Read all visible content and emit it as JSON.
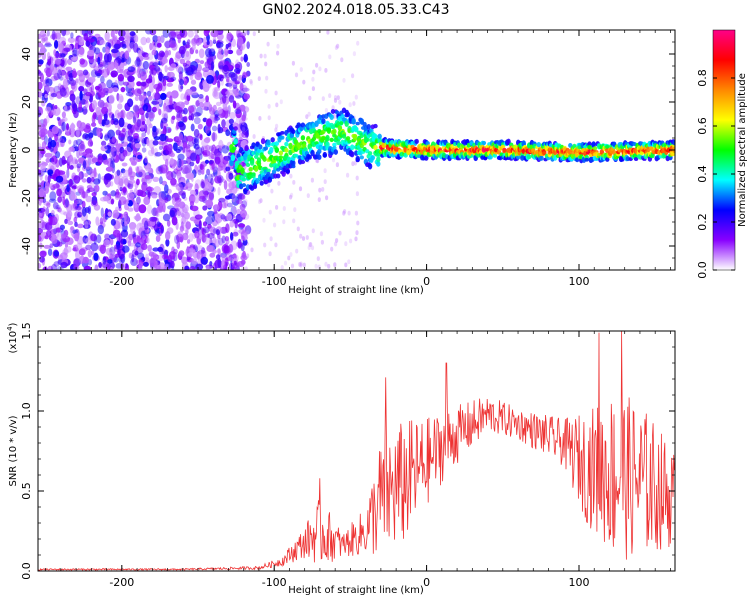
{
  "figure": {
    "title": "GN02.2024.018.05.33.C43"
  },
  "chart_data": [
    {
      "type": "heatmap",
      "name": "spectrogram",
      "xlabel": "Height of straight line (km)",
      "ylabel": "Frequency (Hz)",
      "xlim": [
        -255,
        163
      ],
      "ylim": [
        -50,
        50
      ],
      "xticks": [
        -200,
        -100,
        0,
        100
      ],
      "yticks": [
        40,
        20,
        0,
        -20,
        -40
      ],
      "colorbar": {
        "label": "Normalized spectral amplitude",
        "range": [
          0,
          1
        ],
        "ticks": [
          "0.0",
          "0.2",
          "0.4",
          "0.6",
          "0.8"
        ],
        "tick_values": [
          0.0,
          0.2,
          0.4,
          0.6,
          0.8
        ],
        "colors": [
          "#ffffff",
          "#8800ff",
          "#0000ff",
          "#00ffff",
          "#00ff00",
          "#ffff00",
          "#ff8800",
          "#ff0000",
          "#ff0088"
        ]
      },
      "features": {
        "noise_region_x": [
          -255,
          -125
        ],
        "ridge_center_hz": 0,
        "ridge": [
          {
            "x": -125,
            "freq": -10
          },
          {
            "x": -100,
            "freq": -3
          },
          {
            "x": -75,
            "freq": 5
          },
          {
            "x": -55,
            "freq": 8
          },
          {
            "x": -35,
            "freq": 1
          },
          {
            "x": 0,
            "freq": 0
          },
          {
            "x": 50,
            "freq": 0
          },
          {
            "x": 100,
            "freq": -1
          },
          {
            "x": 163,
            "freq": 0
          }
        ]
      }
    },
    {
      "type": "line",
      "name": "snr",
      "xlabel": "Height of straight line (km)",
      "ylabel": "SNR (10 * v/v)",
      "y_multiplier": "(x10",
      "y_multiplier_exp": "4",
      "y_multiplier_close": ")",
      "xlim": [
        -255,
        163
      ],
      "ylim": [
        0.0,
        1.5
      ],
      "xticks": [
        -200,
        -100,
        0,
        100
      ],
      "yticks": [
        "0.0",
        "0.5",
        "1.0",
        "1.5"
      ],
      "ytick_values": [
        0.0,
        0.5,
        1.0,
        1.5
      ],
      "color": "#ee3333",
      "envelope": [
        {
          "x": -255,
          "mean": 0.01,
          "amp": 0.005
        },
        {
          "x": -160,
          "mean": 0.01,
          "amp": 0.005
        },
        {
          "x": -110,
          "mean": 0.02,
          "amp": 0.01
        },
        {
          "x": -95,
          "mean": 0.06,
          "amp": 0.03
        },
        {
          "x": -80,
          "mean": 0.18,
          "amp": 0.1
        },
        {
          "x": -70,
          "mean": 0.25,
          "amp": 0.22
        },
        {
          "x": -55,
          "mean": 0.16,
          "amp": 0.08
        },
        {
          "x": -40,
          "mean": 0.25,
          "amp": 0.15
        },
        {
          "x": -30,
          "mean": 0.45,
          "amp": 0.38
        },
        {
          "x": -15,
          "mean": 0.55,
          "amp": 0.4
        },
        {
          "x": 0,
          "mean": 0.68,
          "amp": 0.28
        },
        {
          "x": 15,
          "mean": 0.82,
          "amp": 0.2
        },
        {
          "x": 40,
          "mean": 0.98,
          "amp": 0.12
        },
        {
          "x": 60,
          "mean": 0.92,
          "amp": 0.1
        },
        {
          "x": 90,
          "mean": 0.8,
          "amp": 0.15
        },
        {
          "x": 105,
          "mean": 0.65,
          "amp": 0.35
        },
        {
          "x": 125,
          "mean": 0.6,
          "amp": 0.55
        },
        {
          "x": 145,
          "mean": 0.55,
          "amp": 0.45
        },
        {
          "x": 163,
          "mean": 0.45,
          "amp": 0.3
        }
      ],
      "peaks": [
        {
          "x": -70,
          "y": 0.58
        },
        {
          "x": -27,
          "y": 1.21
        },
        {
          "x": 13,
          "y": 1.3
        },
        {
          "x": 113,
          "y": 1.49
        },
        {
          "x": 128,
          "y": 1.5
        }
      ]
    }
  ]
}
